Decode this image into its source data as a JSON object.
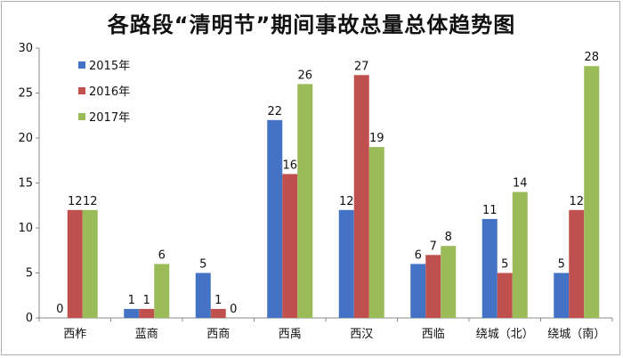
{
  "chart_data": {
    "type": "bar",
    "title": "各路段“清明节”期间事故总量总体趋势图",
    "categories": [
      "西柞",
      "蓝商",
      "西商",
      "西禹",
      "西汉",
      "西临",
      "绕城（北）",
      "绕城（南）"
    ],
    "series": [
      {
        "name": "2015年",
        "color": "#4472c4",
        "values": [
          0,
          1,
          5,
          22,
          12,
          6,
          11,
          5
        ]
      },
      {
        "name": "2016年",
        "color": "#c0504d",
        "values": [
          12,
          1,
          1,
          16,
          27,
          7,
          5,
          12
        ]
      },
      {
        "name": "2017年",
        "color": "#9bbb59",
        "values": [
          12,
          6,
          0,
          26,
          19,
          8,
          14,
          28
        ]
      }
    ],
    "ylim": [
      0,
      30
    ],
    "yticks": [
      0,
      5,
      10,
      15,
      20,
      25,
      30
    ],
    "grid": false,
    "legend": "top-left"
  }
}
